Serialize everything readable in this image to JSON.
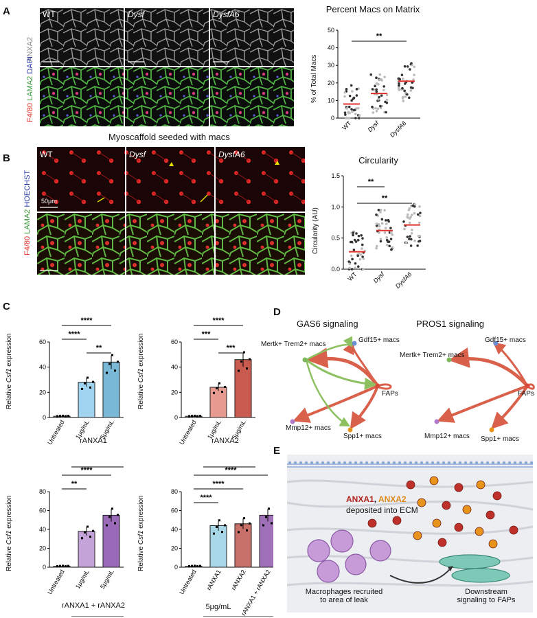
{
  "panels": {
    "A": "A",
    "B": "B",
    "C": "C",
    "D": "D",
    "E": "E"
  },
  "panelA": {
    "cols": [
      "WT",
      "Dysf",
      "DysfA6"
    ],
    "row1_label": "ANXA2",
    "row2_label": {
      "a": "F4/80",
      "b": "LAMA2",
      "c": "DAPI"
    },
    "chart_title": "Percent Macs on Matrix",
    "ylabel": "% of Total Macs"
  },
  "panelB": {
    "caption": "Myoscaffold seeded with macs",
    "cols": [
      "WT",
      "Dysf",
      "DysfA6"
    ],
    "scale": "50μm",
    "side_label": {
      "a": "F4/80",
      "b": "LAMA2",
      "c": "HOECHST"
    },
    "chart_title": "Circularity",
    "ylabel": "Circularity (AU)"
  },
  "panelC": {
    "ylabel_pre": "Relative ",
    "ylabel_gene": "Csf1",
    "ylabel_post": " expression",
    "group1": "rANXA1",
    "group2": "rANXA2",
    "group3": "rANXA1 + rANXA2",
    "group4": "5μg/mL"
  },
  "panelD": {
    "gas6_title": "GAS6 signaling",
    "pros1_title": "PROS1 signaling",
    "nodes": [
      "Mertk+ Trem2+ macs",
      "Gdf15+ macs",
      "FAPs",
      "Mmp12+ macs",
      "Spp1+ macs"
    ]
  },
  "panelE": {
    "anxa1": "ANXA1",
    "sep": ", ",
    "anxa2": "ANXA2",
    "deposited": "deposited into ECM",
    "recruited1": "Macrophages recruited",
    "recruited2": "to area of leak",
    "down1": "Downstream",
    "down2": "signaling to FAPs"
  },
  "colors": {
    "red": "#d94a3a",
    "green": "#7ab85a",
    "blue": "#6a8fd0",
    "purple": "#b07ac8",
    "orange": "#e8931c",
    "navy": "#2a3a8c"
  },
  "chart_data": [
    {
      "type": "scatter",
      "title": "Percent Macs on Matrix",
      "ylabel": "% of Total Macs",
      "categories": [
        "WT",
        "Dysf",
        "DysfA6"
      ],
      "means": [
        8,
        14,
        21
      ],
      "ylim": [
        0,
        50
      ],
      "yticks": [
        0,
        10,
        20,
        30,
        40,
        50
      ],
      "sig": [
        {
          "from": "WT",
          "to": "DysfA6",
          "label": "**"
        }
      ]
    },
    {
      "type": "scatter",
      "title": "Circularity",
      "ylabel": "Circularity (AU)",
      "categories": [
        "WT",
        "Dysf",
        "DysfA6"
      ],
      "means": [
        0.28,
        0.62,
        0.71
      ],
      "ylim": [
        0,
        1.5
      ],
      "yticks": [
        "0.0",
        "0.5",
        "1.0",
        "1.5"
      ],
      "sig": [
        {
          "from": "WT",
          "to": "Dysf",
          "label": "**"
        },
        {
          "from": "WT",
          "to": "DysfA6",
          "label": "**"
        }
      ]
    },
    {
      "type": "bar",
      "categories": [
        "Untreated",
        "1μg/mL",
        "5μg/mL"
      ],
      "values": [
        1,
        28,
        44
      ],
      "ylim": [
        0,
        60
      ],
      "yticks": [
        0,
        20,
        40,
        60
      ],
      "sig": [
        {
          "from": 0,
          "to": 2,
          "label": "****"
        },
        {
          "from": 0,
          "to": 1,
          "label": "****"
        },
        {
          "from": 1,
          "to": 2,
          "label": "**"
        }
      ]
    },
    {
      "type": "bar",
      "categories": [
        "Untreated",
        "1μg/mL",
        "5μg/mL"
      ],
      "values": [
        1,
        24,
        46
      ],
      "ylim": [
        0,
        60
      ],
      "yticks": [
        0,
        20,
        40,
        60
      ],
      "sig": [
        {
          "from": 0,
          "to": 2,
          "label": "****"
        },
        {
          "from": 0,
          "to": 1,
          "label": "***"
        },
        {
          "from": 1,
          "to": 2,
          "label": "***"
        }
      ]
    },
    {
      "type": "bar",
      "categories": [
        "Untreated",
        "1μg/mL",
        "5μg/mL"
      ],
      "values": [
        1,
        38,
        55
      ],
      "ylim": [
        0,
        80
      ],
      "yticks": [
        0,
        20,
        40,
        60,
        80
      ],
      "sig": [
        {
          "from": 0,
          "to": 2,
          "label": "****"
        },
        {
          "from": 0,
          "to": 1,
          "label": "**"
        }
      ]
    },
    {
      "type": "bar",
      "categories": [
        "Untreated",
        "rANXA1",
        "rANXA2",
        "rANXA1 + rANXA2"
      ],
      "values": [
        1,
        44,
        46,
        55
      ],
      "ylim": [
        0,
        80
      ],
      "yticks": [
        0,
        20,
        40,
        60,
        80
      ],
      "sig": [
        {
          "from": 0,
          "to": 3,
          "label": "****"
        },
        {
          "from": 0,
          "to": 2,
          "label": "****"
        },
        {
          "from": 0,
          "to": 1,
          "label": "****"
        }
      ]
    }
  ]
}
